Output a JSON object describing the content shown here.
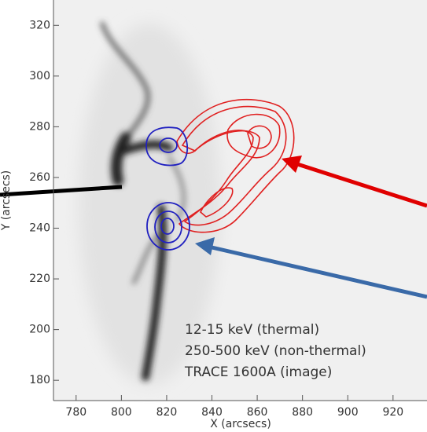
{
  "chart_data": {
    "type": "image",
    "xlabel": "X (arcsecs)",
    "ylabel": "Y (arcsecs)",
    "xlim": [
      770,
      935
    ],
    "ylim": [
      172,
      330
    ],
    "xticks": [
      780,
      800,
      820,
      840,
      860,
      880,
      900,
      920
    ],
    "yticks": [
      180,
      200,
      220,
      240,
      260,
      280,
      300,
      320
    ],
    "series": [
      {
        "name": "12-15 keV (thermal)",
        "color": "#e02020"
      },
      {
        "name": "250-500 keV (non-thermal)",
        "color": "#2020c0"
      },
      {
        "name": "TRACE 1600A (image)",
        "color": "#111111"
      }
    ]
  }
}
